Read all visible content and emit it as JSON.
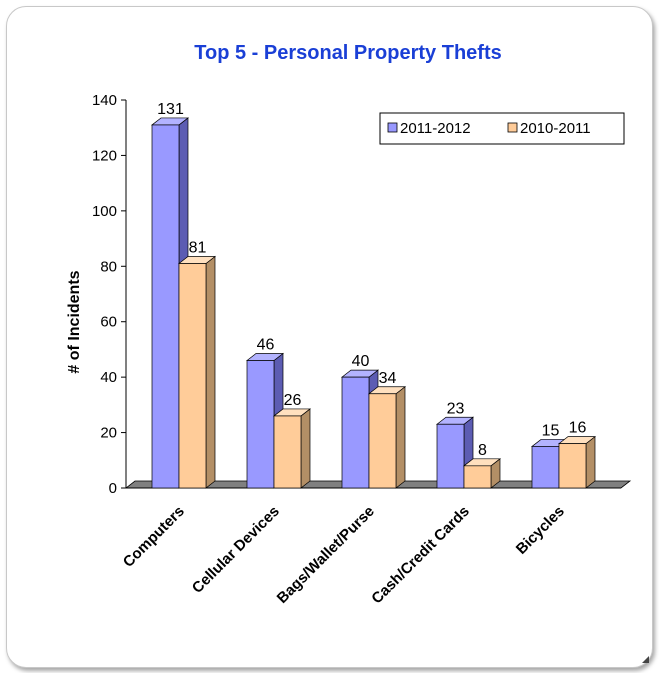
{
  "chart_data": {
    "type": "bar",
    "title": "Top 5 - Personal Property Thefts",
    "xlabel": "",
    "ylabel": "# of Incidents",
    "ylim": [
      0,
      140
    ],
    "ytick_step": 20,
    "categories": [
      "Computers",
      "Cellular Devices",
      "Bags/Wallet/Purse",
      "Cash/Credit Cards",
      "Bicycles"
    ],
    "series": [
      {
        "name": "2011-2012",
        "values": [
          131,
          46,
          40,
          23,
          15
        ],
        "color": "#9999ff",
        "side": "#5c5cb3",
        "top": "#b3b3ff"
      },
      {
        "name": "2010-2011",
        "values": [
          81,
          26,
          34,
          8,
          16
        ],
        "color": "#ffcc99",
        "side": "#b38f66",
        "top": "#ffe0bf"
      }
    ],
    "legend_position": "top-right",
    "grid": false
  }
}
